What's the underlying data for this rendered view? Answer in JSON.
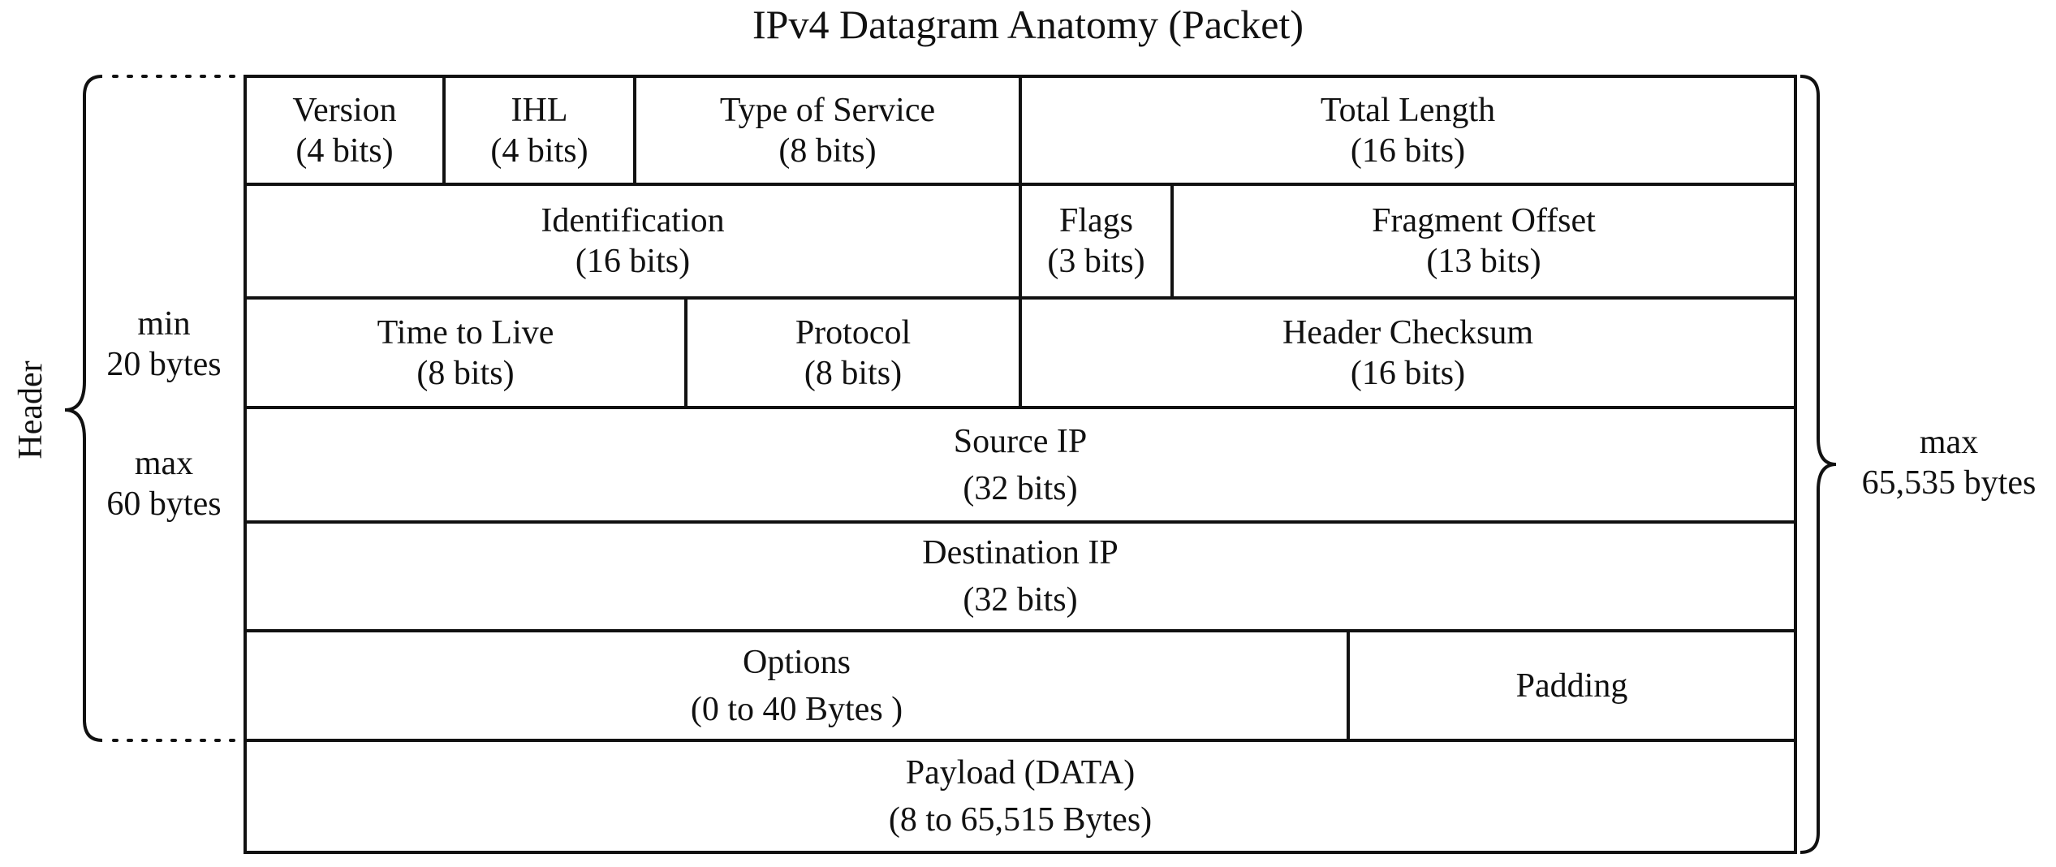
{
  "title": "IPv4 Datagram Anatomy (Packet)",
  "fields": {
    "version": {
      "name": "Version",
      "size": "(4 bits)"
    },
    "ihl": {
      "name": "IHL",
      "size": "(4 bits)"
    },
    "type_of_service": {
      "name": "Type of Service",
      "size": "(8 bits)"
    },
    "total_length": {
      "name": "Total Length",
      "size": "(16 bits)"
    },
    "identification": {
      "name": "Identification",
      "size": "(16 bits)"
    },
    "flags": {
      "name": "Flags",
      "size": "(3 bits)"
    },
    "fragment_offset": {
      "name": "Fragment Offset",
      "size": "(13 bits)"
    },
    "time_to_live": {
      "name": "Time to Live",
      "size": "(8 bits)"
    },
    "protocol": {
      "name": "Protocol",
      "size": "(8 bits)"
    },
    "header_checksum": {
      "name": "Header Checksum",
      "size": "(16 bits)"
    },
    "source_ip": {
      "name": "Source IP",
      "size": "(32 bits)"
    },
    "destination_ip": {
      "name": "Destination IP",
      "size": "(32 bits)"
    },
    "options": {
      "name": "Options",
      "size": "(0 to 40 Bytes )"
    },
    "padding": {
      "name": "Padding"
    },
    "payload": {
      "name": "Payload (DATA)",
      "size": "(8 to 65,515 Bytes)"
    }
  },
  "header_brace": {
    "label": "Header",
    "min_line1": "min",
    "min_line2": "20 bytes",
    "max_line1": "max",
    "max_line2": "60 bytes"
  },
  "packet_brace": {
    "line1": "max",
    "line2": "65,535 bytes"
  }
}
